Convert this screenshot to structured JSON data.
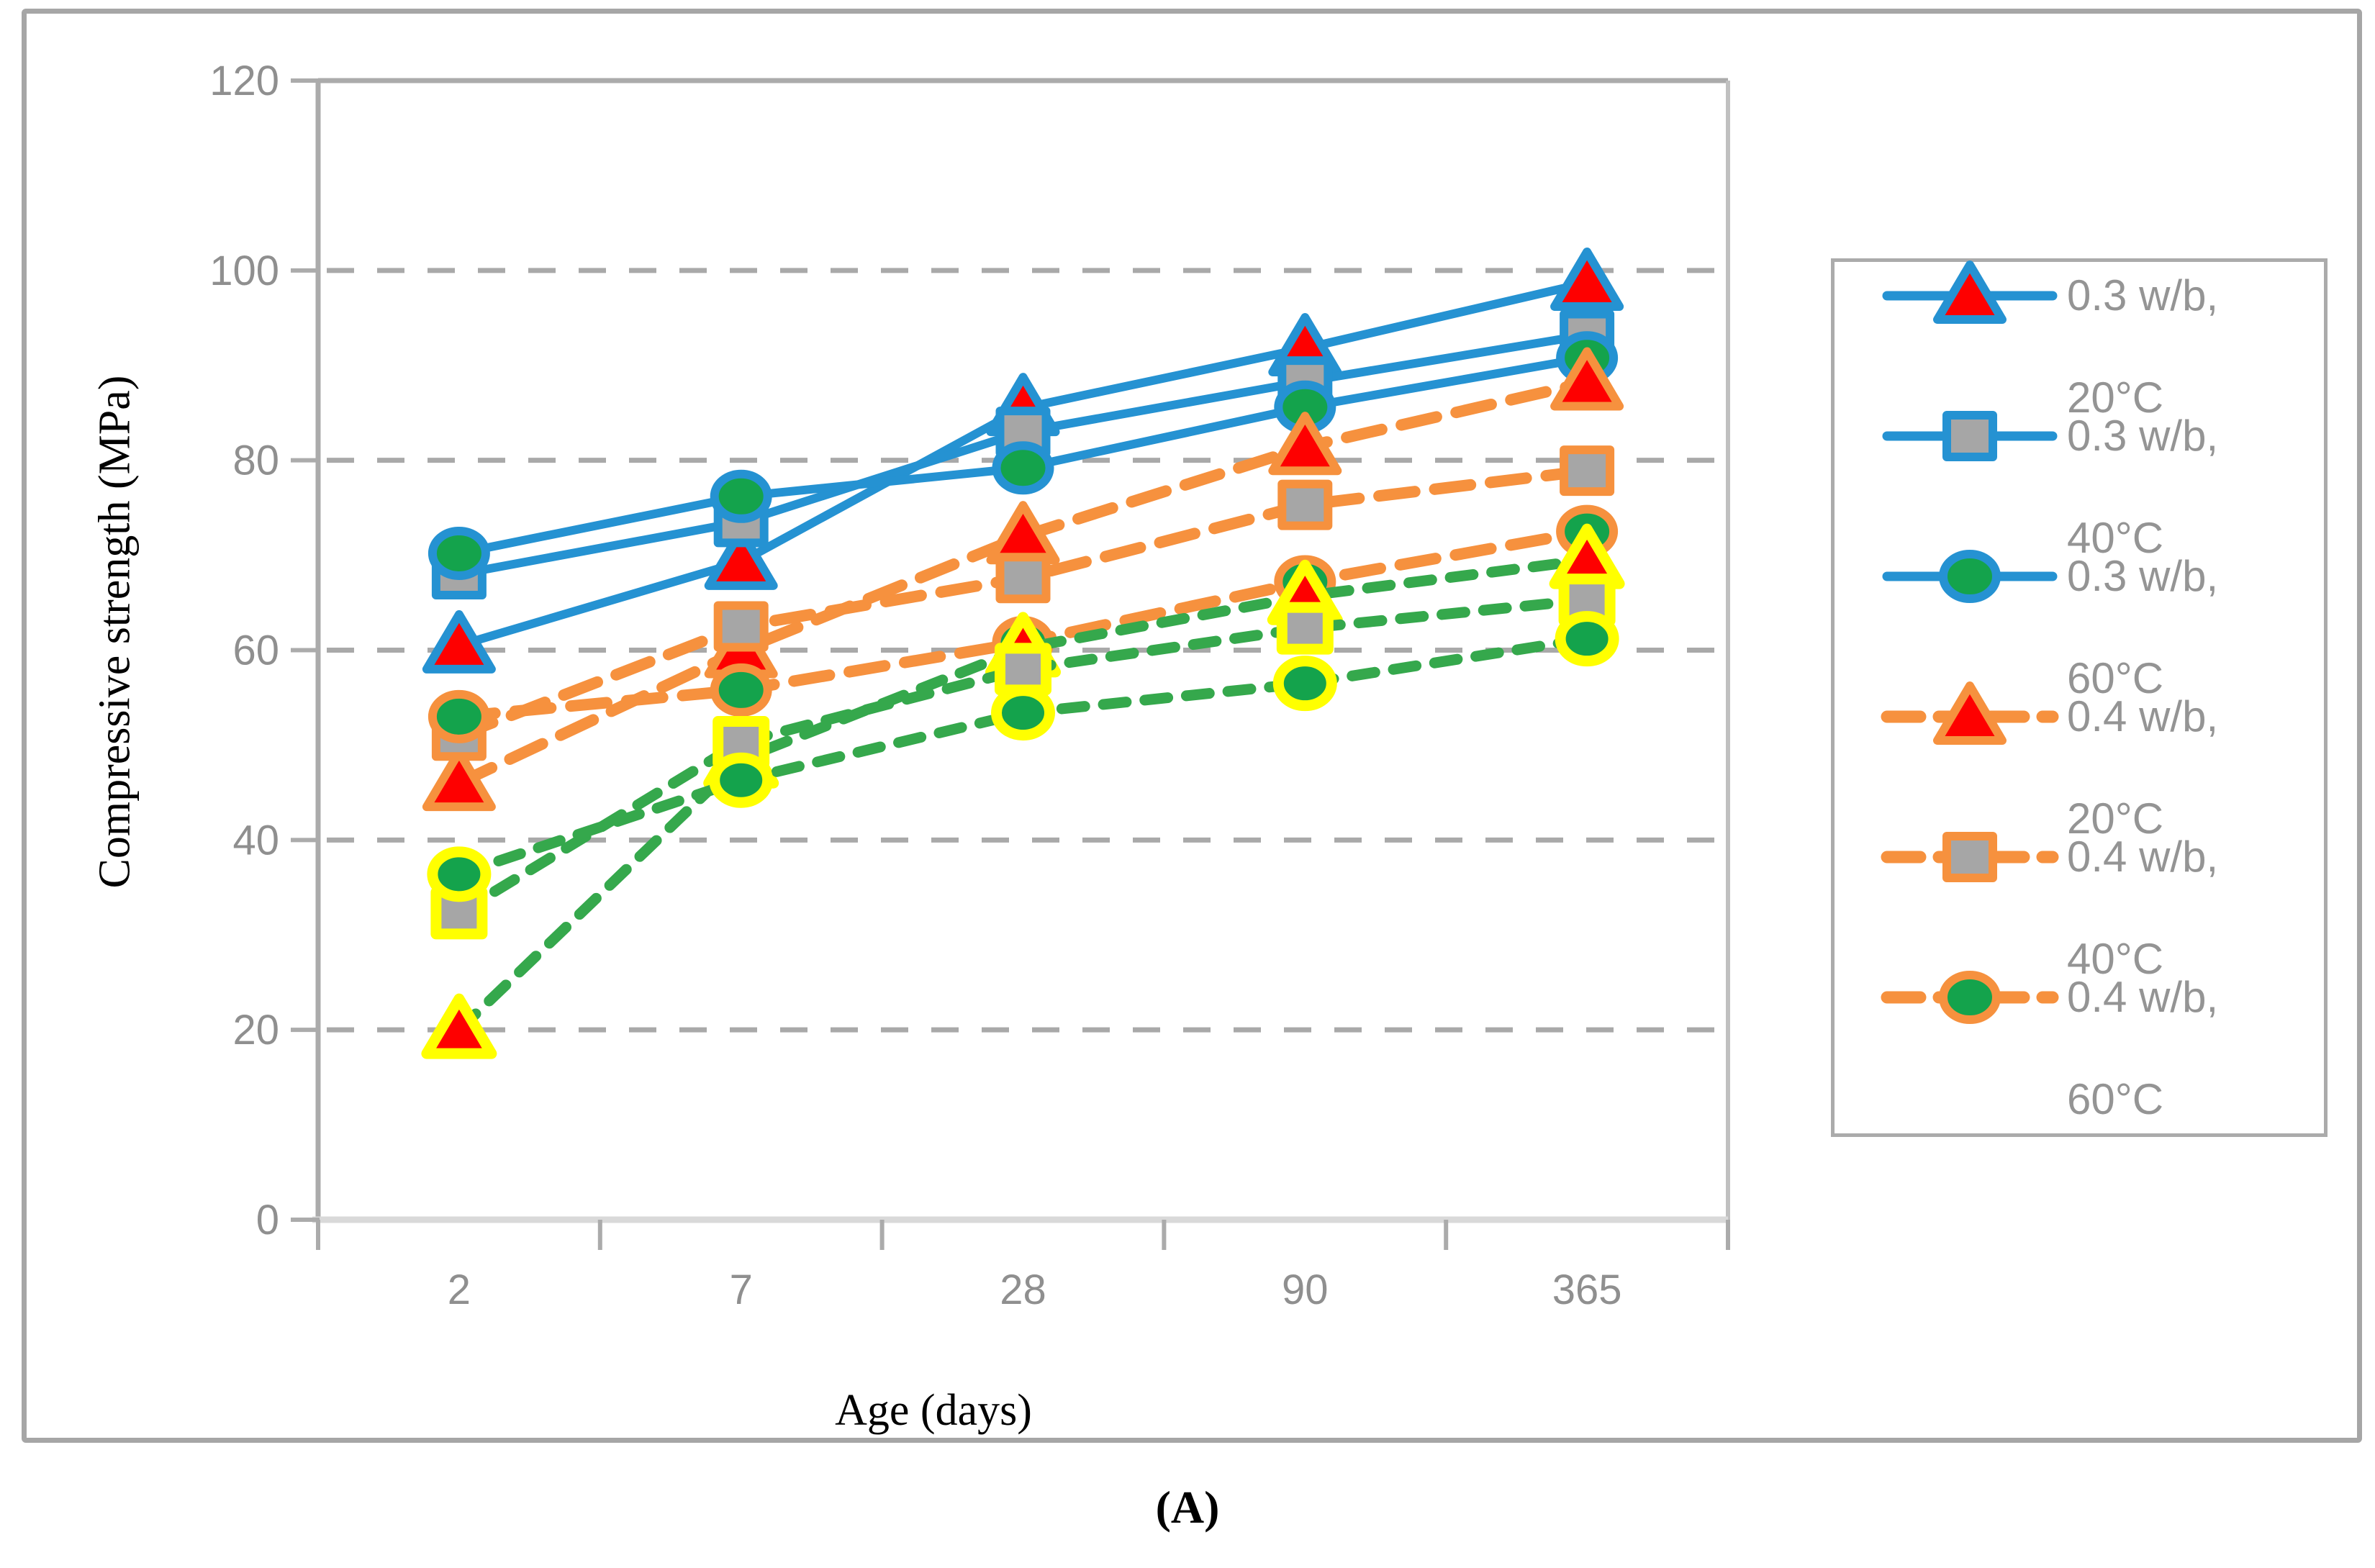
{
  "figure": {
    "caption": "(A)"
  },
  "colors": {
    "axis_line": "#ABABAB",
    "plot_right_border": "#C0C0C0",
    "plot_bottom_axis": "#D9D9D9",
    "grid": "#A9A9A9",
    "axis_text": "#8F8F8F",
    "legend_text": "#949494",
    "frame": "#A6A6A6",
    "blue": "#2592D2",
    "orange": "#F6913E",
    "green_line": "#35A84C",
    "red_fill": "#FE0000",
    "gray_fill": "#A6A6A6",
    "green_fill": "#14A34C",
    "yellow_border": "#FFFF00"
  },
  "chart_data": {
    "type": "line",
    "title": "",
    "xlabel": "Age (days)",
    "ylabel": "Compressive strength (MPa)",
    "categories": [
      "2",
      "7",
      "28",
      "90",
      "365"
    ],
    "ylim": [
      0,
      120
    ],
    "y_ticks": [
      0,
      20,
      40,
      60,
      80,
      100,
      120
    ],
    "gridlines_at": [
      20,
      40,
      60,
      80,
      100
    ],
    "grid_style": "horizontal-dashed",
    "legend_position": "right",
    "series": [
      {
        "label": "0.3 w/b, 20°C",
        "legend_lines": [
          " 0.3 w/b,",
          "20°C"
        ],
        "in_legend": true,
        "line_color": "#2592D2",
        "line_style": "solid",
        "marker": "triangle",
        "marker_fill": "#FE0000",
        "marker_border": "#2592D2",
        "values": [
          60.5,
          69.3,
          85.5,
          91.8,
          98.7
        ]
      },
      {
        "label": "0.3 w/b, 40°C",
        "legend_lines": [
          "0.3 w/b,",
          "40°C"
        ],
        "in_legend": true,
        "line_color": "#2592D2",
        "line_style": "solid",
        "marker": "square",
        "marker_fill": "#A6A6A6",
        "marker_border": "#2592D2",
        "values": [
          68.0,
          73.5,
          83.0,
          88.3,
          93.2
        ]
      },
      {
        "label": "0.3 w/b, 60°C",
        "legend_lines": [
          " 0.3 w/b,",
          "60°C"
        ],
        "in_legend": true,
        "line_color": "#2592D2",
        "line_style": "solid",
        "marker": "circle",
        "marker_fill": "#14A34C",
        "marker_border": "#2592D2",
        "values": [
          70.2,
          76.2,
          79.2,
          85.6,
          90.8
        ]
      },
      {
        "label": "0.4 w/b, 20°C",
        "legend_lines": [
          " 0.4 w/b,",
          "20°C"
        ],
        "in_legend": true,
        "line_color": "#F6913E",
        "line_style": "long-dash",
        "marker": "triangle",
        "marker_fill": "#FE0000",
        "marker_border": "#F6913E",
        "values": [
          46.0,
          60.0,
          72.0,
          81.4,
          88.2
        ]
      },
      {
        "label": "0.4 w/b, 40°C",
        "legend_lines": [
          "0.4 w/b,",
          "40°C"
        ],
        "in_legend": true,
        "line_color": "#F6913E",
        "line_style": "long-dash",
        "marker": "square",
        "marker_fill": "#A6A6A6",
        "marker_border": "#F6913E",
        "values": [
          51.0,
          62.5,
          67.6,
          75.3,
          78.9
        ]
      },
      {
        "label": "0.4 w/b, 60°C",
        "legend_lines": [
          "0.4 w/b,",
          "60°C"
        ],
        "in_legend": true,
        "line_color": "#F6913E",
        "line_style": "long-dash",
        "marker": "circle",
        "marker_fill": "#14A34C",
        "marker_border": "#F6913E",
        "values": [
          53.0,
          55.8,
          60.8,
          67.2,
          72.5
        ]
      },
      {
        "label": "",
        "legend_lines": null,
        "in_legend": false,
        "line_color": "#35A84C",
        "line_style": "short-dash",
        "marker": "triangle",
        "marker_fill": "#FE0000",
        "marker_border": "#FFFF00",
        "values": [
          20.0,
          48.5,
          60.2,
          65.7,
          69.5
        ]
      },
      {
        "label": "",
        "legend_lines": null,
        "in_legend": false,
        "line_color": "#35A84C",
        "line_style": "short-dash",
        "marker": "square",
        "marker_fill": "#A6A6A6",
        "marker_border": "#FFFF00",
        "values": [
          32.3,
          50.3,
          58.0,
          62.3,
          65.3
        ]
      },
      {
        "label": "",
        "legend_lines": null,
        "in_legend": false,
        "line_color": "#35A84C",
        "line_style": "short-dash",
        "marker": "circle",
        "marker_fill": "#14A34C",
        "marker_border": "#FFFF00",
        "values": [
          36.4,
          46.3,
          53.4,
          56.5,
          61.2
        ]
      }
    ]
  }
}
